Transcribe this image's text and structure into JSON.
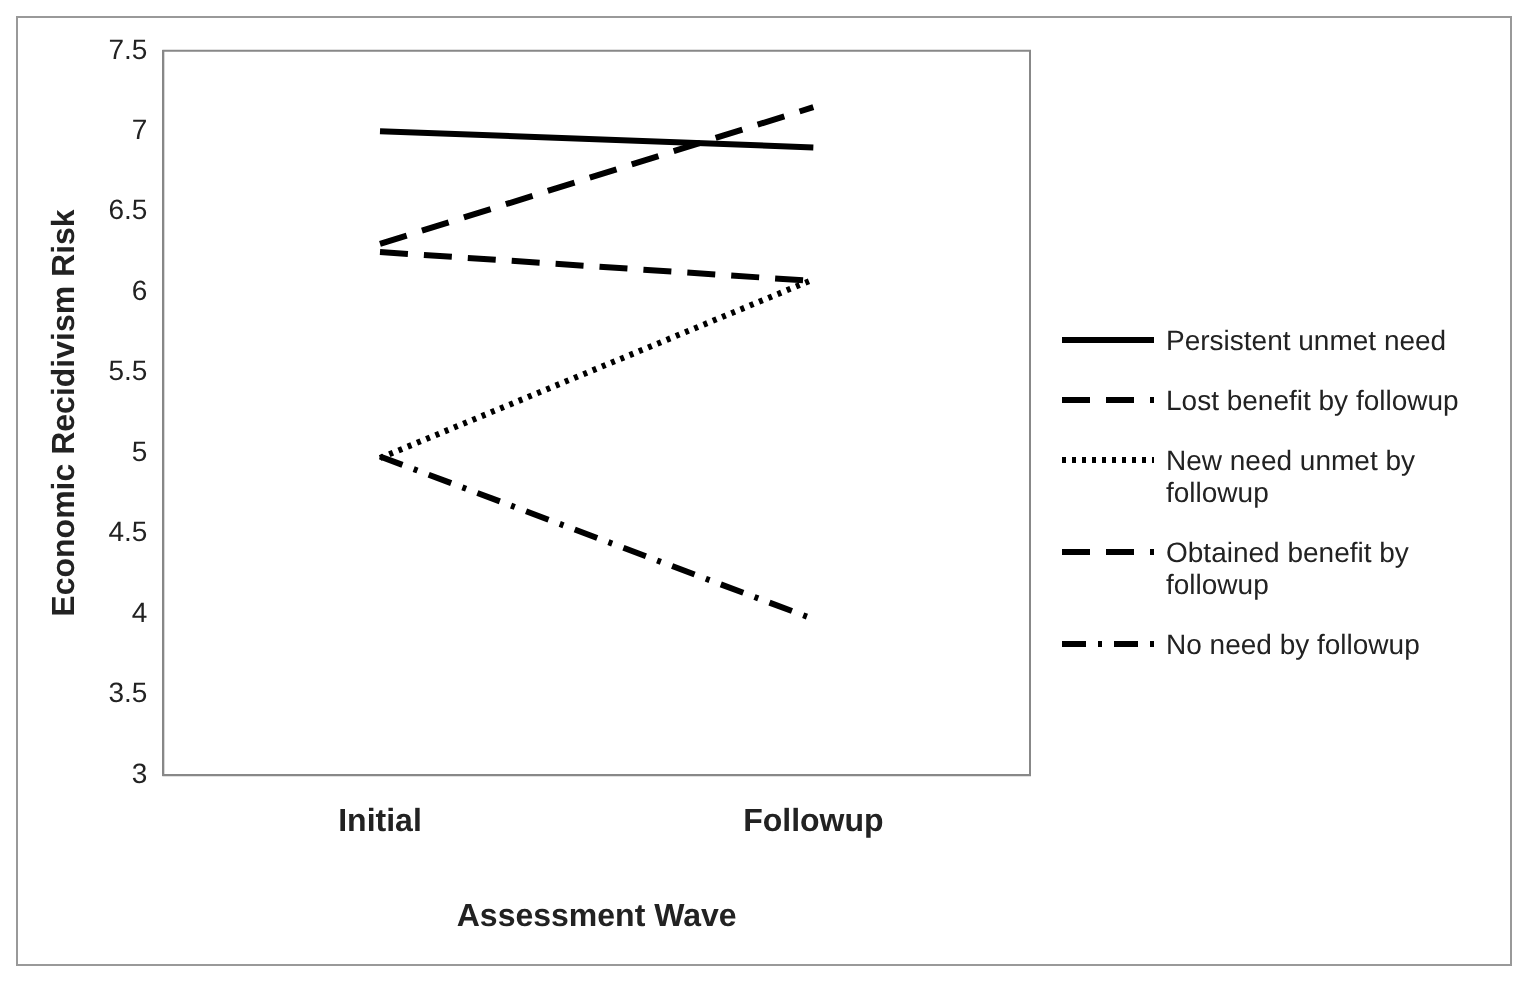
{
  "chart_data": {
    "type": "line",
    "xlabel": "Assessment Wave",
    "ylabel": "Economic Recidivism Risk",
    "categories": [
      "Initial",
      "Followup"
    ],
    "series": [
      {
        "name": "Persistent unmet need",
        "color": "#000000",
        "line_style": "solid",
        "values": [
          7.0,
          6.9
        ]
      },
      {
        "name": "Lost benefit by followup",
        "color": "#000000",
        "line_style": "dashed",
        "values": [
          6.3,
          7.15
        ]
      },
      {
        "name": "New need unmet by followup",
        "color": "#000000",
        "line_style": "dotted",
        "values": [
          4.97,
          6.08
        ]
      },
      {
        "name": "Obtained benefit by followup",
        "color": "#000000",
        "line_style": "dashed",
        "values": [
          6.25,
          6.07
        ]
      },
      {
        "name": "No need by followup",
        "color": "#000000",
        "line_style": "dashdot",
        "values": [
          4.98,
          3.97
        ]
      }
    ],
    "ylim": [
      3,
      7.5
    ],
    "yticks": [
      3,
      3.5,
      4,
      4.5,
      5,
      5.5,
      6,
      6.5,
      7,
      7.5
    ],
    "grid": false,
    "legend": "right",
    "marker": "none"
  }
}
